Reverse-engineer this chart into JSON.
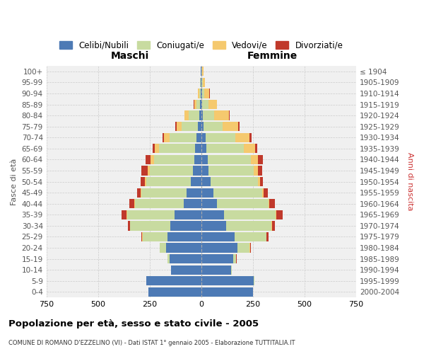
{
  "age_groups": [
    "0-4",
    "5-9",
    "10-14",
    "15-19",
    "20-24",
    "25-29",
    "30-34",
    "35-39",
    "40-44",
    "45-49",
    "50-54",
    "55-59",
    "60-64",
    "65-69",
    "70-74",
    "75-79",
    "80-84",
    "85-89",
    "90-94",
    "95-99",
    "100+"
  ],
  "birth_years": [
    "2000-2004",
    "1995-1999",
    "1990-1994",
    "1985-1989",
    "1980-1984",
    "1975-1979",
    "1970-1974",
    "1965-1969",
    "1960-1964",
    "1955-1959",
    "1950-1954",
    "1945-1949",
    "1940-1944",
    "1935-1939",
    "1930-1934",
    "1925-1929",
    "1920-1924",
    "1915-1919",
    "1910-1914",
    "1905-1909",
    "≤ 1904"
  ],
  "maschi": {
    "celibe": [
      255,
      265,
      145,
      155,
      170,
      165,
      150,
      130,
      85,
      70,
      50,
      40,
      35,
      30,
      25,
      15,
      10,
      5,
      3,
      2,
      2
    ],
    "coniugato": [
      0,
      2,
      2,
      8,
      30,
      120,
      195,
      230,
      235,
      220,
      215,
      210,
      195,
      175,
      130,
      80,
      50,
      20,
      8,
      3,
      2
    ],
    "vedovo": [
      0,
      0,
      0,
      0,
      0,
      1,
      1,
      2,
      3,
      5,
      8,
      10,
      15,
      20,
      25,
      25,
      20,
      10,
      5,
      2,
      0
    ],
    "divorziato": [
      0,
      0,
      0,
      0,
      2,
      5,
      10,
      25,
      25,
      15,
      20,
      30,
      25,
      10,
      8,
      5,
      3,
      2,
      0,
      0,
      0
    ]
  },
  "femmine": {
    "nubile": [
      250,
      255,
      145,
      155,
      175,
      160,
      120,
      110,
      75,
      60,
      45,
      35,
      30,
      25,
      20,
      12,
      8,
      5,
      3,
      2,
      2
    ],
    "coniugata": [
      0,
      1,
      3,
      15,
      60,
      155,
      220,
      250,
      250,
      235,
      230,
      220,
      210,
      180,
      145,
      90,
      55,
      30,
      12,
      5,
      3
    ],
    "vedova": [
      0,
      0,
      0,
      0,
      1,
      2,
      2,
      3,
      5,
      8,
      10,
      20,
      35,
      55,
      70,
      75,
      70,
      40,
      25,
      10,
      5
    ],
    "divorziata": [
      0,
      0,
      0,
      1,
      3,
      8,
      15,
      30,
      25,
      20,
      15,
      20,
      25,
      12,
      10,
      8,
      3,
      2,
      1,
      0,
      0
    ]
  },
  "colors": {
    "celibe_nubile": "#4d7ab5",
    "coniugato": "#c8dba0",
    "vedovo": "#f5c96e",
    "divorziato": "#c0392b"
  },
  "xlim": 750,
  "title": "Popolazione per età, sesso e stato civile - 2005",
  "subtitle": "COMUNE DI ROMANO D'EZZELINO (VI) - Dati ISTAT 1° gennaio 2005 - Elaborazione TUTTITALIA.IT",
  "xlabel_left": "Maschi",
  "xlabel_right": "Femmine",
  "ylabel_left": "Fasce di età",
  "ylabel_right": "Anni di nascita",
  "bg_color": "#ffffff",
  "plot_bg_color": "#f0f0f0",
  "grid_color": "#cccccc"
}
